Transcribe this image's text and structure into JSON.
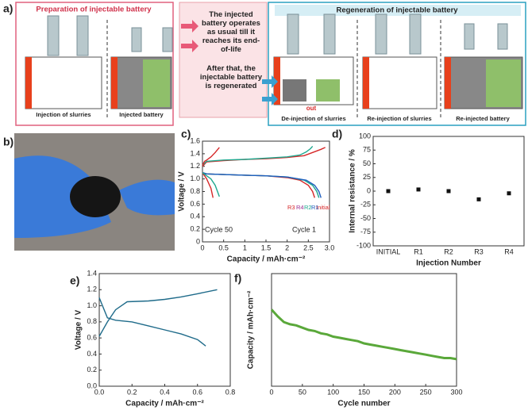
{
  "panel_labels": [
    "a)",
    "b)",
    "c)",
    "d)",
    "e)",
    "f)"
  ],
  "diagram": {
    "left_title": "Preparation of injectable battery",
    "right_title": "Regeneration of injectable battery",
    "middle_text_1": "The injected battery operates as usual till it reaches its end-of-life",
    "middle_text_2": "After that, the injectable battery is regenerated",
    "captions": [
      "Injection of slurries",
      "Injected battery",
      "De-injection of slurries",
      "Re-injection of slurries",
      "Re-injected battery"
    ],
    "out_label": "out"
  },
  "chart_data": [
    {
      "type": "line",
      "xlabel": "Capacity / mAh·cm⁻²",
      "ylabel": "Voltage / V",
      "xlim": [
        0,
        3
      ],
      "xticks": [
        0,
        0.5,
        1,
        1.5,
        2,
        2.5,
        {
          "value": 3,
          "label": "3.0"
        }
      ],
      "ylim": [
        0,
        1.6
      ],
      "yticks": [
        0,
        0.2,
        0.4,
        0.6,
        0.8,
        {
          "value": 1,
          "label": "1.0"
        },
        1.2,
        1.4,
        1.6
      ],
      "annotations": [
        {
          "text": "Cycle 50",
          "color": "#222222"
        },
        {
          "text": "Cycle 1",
          "color": "#222222"
        },
        {
          "text": "Initial",
          "color": "#d62728"
        },
        {
          "text": "R3",
          "color": "#d62728"
        },
        {
          "text": "R4",
          "color": "#9b2d8f"
        },
        {
          "text": "R2",
          "color": "#1fa88f"
        },
        {
          "text": "R1",
          "color": "#1f5fbf"
        }
      ],
      "series": [
        {
          "color": "#d62728",
          "x": [
            0,
            0.1,
            0.5,
            1,
            1.5,
            2,
            2.4,
            2.6,
            2.8,
            2.9
          ],
          "values": [
            1.2,
            1.27,
            1.29,
            1.31,
            1.32,
            1.34,
            1.37,
            1.42,
            1.47,
            1.5
          ]
        },
        {
          "color": "#1fa88f",
          "x": [
            0,
            0.1,
            0.5,
            1,
            1.5,
            2,
            2.3,
            2.45,
            2.55,
            2.6
          ],
          "values": [
            1.22,
            1.28,
            1.3,
            1.31,
            1.33,
            1.35,
            1.38,
            1.43,
            1.48,
            1.52
          ]
        },
        {
          "color": "#d62728",
          "x": [
            0,
            0.1,
            0.5,
            1,
            1.5,
            2,
            2.3,
            2.5,
            2.6,
            2.65
          ],
          "values": [
            1.1,
            1.08,
            1.07,
            1.06,
            1.05,
            1.02,
            0.98,
            0.9,
            0.8,
            0.7
          ]
        },
        {
          "color": "#1fa88f",
          "x": [
            0,
            0.1,
            0.5,
            1,
            1.5,
            2,
            2.4,
            2.6,
            2.7,
            2.75
          ],
          "values": [
            1.1,
            1.08,
            1.07,
            1.06,
            1.05,
            1.03,
            0.98,
            0.9,
            0.8,
            0.7
          ]
        },
        {
          "color": "#1f5fbf",
          "x": [
            0,
            0.1,
            0.5,
            1,
            1.5,
            2,
            2.45,
            2.65,
            2.75,
            2.8
          ],
          "values": [
            1.1,
            1.08,
            1.07,
            1.06,
            1.05,
            1.03,
            0.98,
            0.9,
            0.8,
            0.7
          ]
        },
        {
          "color": "#d62728",
          "x": [
            0,
            0.05,
            0.1,
            0.2,
            0.3,
            0.4
          ],
          "values": [
            1.22,
            1.28,
            1.3,
            1.35,
            1.42,
            1.5
          ]
        },
        {
          "color": "#d62728",
          "x": [
            0,
            0.05,
            0.1,
            0.2,
            0.25
          ],
          "values": [
            1.1,
            1.05,
            1,
            0.85,
            0.7
          ]
        },
        {
          "color": "#1fa88f",
          "x": [
            0,
            0.1,
            0.2,
            0.3,
            0.4
          ],
          "values": [
            1.1,
            1.05,
            1,
            0.9,
            0.72
          ]
        }
      ]
    },
    {
      "type": "scatter",
      "xlabel": "Injection Number",
      "ylabel": "Internal resistance / %",
      "categories": [
        "INITIAL",
        "R1",
        "R2",
        "R3",
        "R4"
      ],
      "values": [
        0,
        3,
        0,
        -15,
        -4
      ],
      "color": "#111111",
      "ylim": [
        -100,
        100
      ],
      "yticks": [
        -100,
        -75,
        -50,
        -25,
        0,
        25,
        50,
        75,
        100
      ]
    },
    {
      "type": "line",
      "xlabel": "Capacity / mAh·cm⁻²",
      "ylabel": "Voltage / V",
      "xlim": [
        0,
        0.8
      ],
      "xticks": [
        {
          "value": 0,
          "label": "0.0"
        },
        0.2,
        0.4,
        0.6,
        0.8
      ],
      "ylim": [
        0,
        1.4
      ],
      "yticks": [
        {
          "value": 0,
          "label": "0.0"
        },
        0.2,
        0.4,
        0.6,
        0.8,
        {
          "value": 1,
          "label": "1.0"
        },
        1.2,
        1.4
      ],
      "series": [
        {
          "color": "#1f6b8a",
          "x": [
            0,
            0.05,
            0.1,
            0.2,
            0.3,
            0.4,
            0.5,
            0.6,
            0.65
          ],
          "values": [
            1.1,
            0.85,
            0.82,
            0.8,
            0.75,
            0.7,
            0.65,
            0.58,
            0.5
          ]
        },
        {
          "color": "#1f6b8a",
          "x": [
            0,
            0.05,
            0.1,
            0.17,
            0.3,
            0.4,
            0.5,
            0.6,
            0.72
          ],
          "values": [
            0.62,
            0.8,
            0.95,
            1.05,
            1.06,
            1.08,
            1.11,
            1.15,
            1.2
          ]
        }
      ]
    },
    {
      "type": "line",
      "xlabel": "Cycle number",
      "ylabel": "Capacity / mAh·cm⁻²",
      "xlim": [
        0,
        300
      ],
      "xticks": [
        0,
        50,
        100,
        150,
        200,
        250,
        300
      ],
      "ylim": [
        0,
        1
      ],
      "series": [
        {
          "color": "#5aa83a",
          "x": [
            0,
            10,
            20,
            30,
            40,
            50,
            60,
            70,
            80,
            90,
            100,
            110,
            120,
            130,
            140,
            150,
            160,
            170,
            180,
            190,
            200,
            210,
            220,
            230,
            240,
            250,
            260,
            270,
            280,
            290,
            300
          ],
          "values": [
            0.68,
            0.62,
            0.57,
            0.55,
            0.54,
            0.52,
            0.5,
            0.49,
            0.47,
            0.46,
            0.44,
            0.43,
            0.42,
            0.41,
            0.4,
            0.38,
            0.37,
            0.36,
            0.35,
            0.34,
            0.33,
            0.32,
            0.31,
            0.3,
            0.29,
            0.28,
            0.27,
            0.26,
            0.25,
            0.25,
            0.24
          ]
        }
      ]
    }
  ]
}
